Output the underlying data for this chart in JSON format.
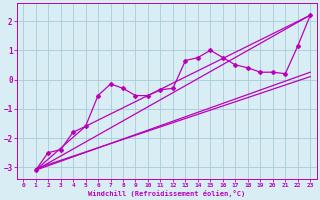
{
  "xlabel": "Windchill (Refroidissement éolien,°C)",
  "bg_color": "#d8eef4",
  "grid_color": "#a8ccd8",
  "line_color": "#bb00bb",
  "xlim": [
    -0.5,
    23.5
  ],
  "ylim": [
    -3.4,
    2.6
  ],
  "xticks": [
    0,
    1,
    2,
    3,
    4,
    5,
    6,
    7,
    8,
    9,
    10,
    11,
    12,
    13,
    14,
    15,
    16,
    17,
    18,
    19,
    20,
    21,
    22,
    23
  ],
  "yticks": [
    -3,
    -2,
    -1,
    0,
    1,
    2
  ],
  "data_x": [
    1,
    2,
    3,
    4,
    5,
    6,
    7,
    8,
    9,
    10,
    11,
    12,
    13,
    14,
    15,
    16,
    17,
    18,
    19,
    20,
    21,
    22,
    23
  ],
  "data_y": [
    -3.1,
    -2.5,
    -2.4,
    -1.8,
    -1.6,
    -0.55,
    -0.15,
    -0.3,
    -0.55,
    -0.55,
    -0.35,
    -0.3,
    0.65,
    0.75,
    1.0,
    0.75,
    0.5,
    0.4,
    0.25,
    0.25,
    0.2,
    1.15,
    2.2
  ],
  "trend1_x": [
    1,
    23
  ],
  "trend1_y": [
    -3.1,
    2.2
  ],
  "trend2_x": [
    1,
    5,
    23
  ],
  "trend2_y": [
    -3.1,
    -1.6,
    2.2
  ],
  "trend3_x": [
    1,
    23
  ],
  "trend3_y": [
    -3.1,
    0.25
  ],
  "trend4_x": [
    1,
    23
  ],
  "trend4_y": [
    -3.05,
    0.1
  ]
}
